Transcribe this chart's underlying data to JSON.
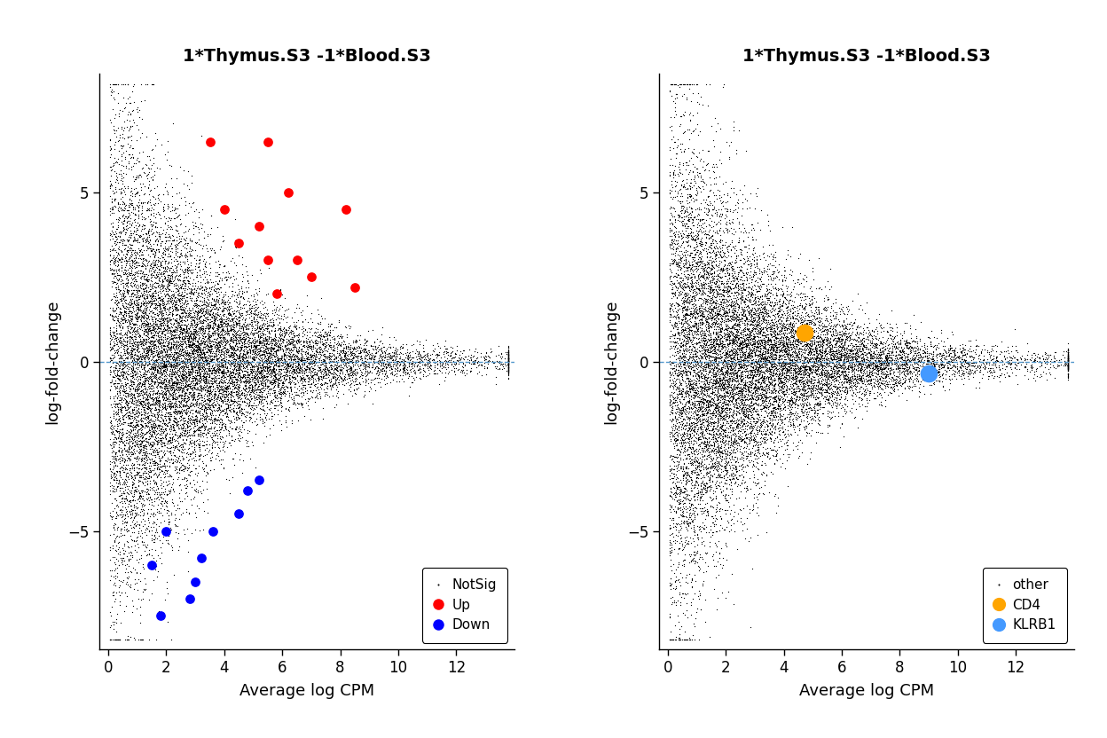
{
  "title": "1*Thymus.S3 -1*Blood.S3",
  "xlabel": "Average log CPM",
  "ylabel": "log-fold-change",
  "xlim": [
    -0.3,
    14.0
  ],
  "ylim": [
    -8.5,
    8.5
  ],
  "xticks": [
    0,
    2,
    4,
    6,
    8,
    10,
    12
  ],
  "yticks": [
    -5,
    0,
    5
  ],
  "background_color": "#ffffff",
  "seed": 42,
  "n_background": 15000,
  "plot1": {
    "title": "1*Thymus.S3 -1*Blood.S3",
    "up_points": [
      [
        3.5,
        6.5
      ],
      [
        5.5,
        6.5
      ],
      [
        4.0,
        4.5
      ],
      [
        5.2,
        4.0
      ],
      [
        6.2,
        5.0
      ],
      [
        4.5,
        3.5
      ],
      [
        5.5,
        3.0
      ],
      [
        6.5,
        3.0
      ],
      [
        7.0,
        2.5
      ],
      [
        8.2,
        4.5
      ],
      [
        8.5,
        2.2
      ],
      [
        5.8,
        2.0
      ]
    ],
    "down_points": [
      [
        1.8,
        -7.5
      ],
      [
        3.0,
        -6.5
      ],
      [
        2.8,
        -7.0
      ],
      [
        1.5,
        -6.0
      ],
      [
        3.2,
        -5.8
      ],
      [
        2.0,
        -5.0
      ],
      [
        3.6,
        -5.0
      ],
      [
        4.5,
        -4.5
      ],
      [
        4.8,
        -3.8
      ],
      [
        5.2,
        -3.5
      ]
    ],
    "legend_items": [
      "NotSig",
      "Up",
      "Down"
    ],
    "legend_colors": [
      "#000000",
      "#ff0000",
      "#0000ff"
    ]
  },
  "plot2": {
    "title": "1*Thymus.S3 -1*Blood.S3",
    "cd4_point": [
      4.7,
      0.85
    ],
    "klrb1_point": [
      9.0,
      -0.35
    ],
    "cd4_color": "#FFA500",
    "klrb1_color": "#4499FF",
    "legend_items": [
      "other",
      "CD4",
      "KLRB1"
    ],
    "legend_colors": [
      "#000000",
      "#FFA500",
      "#4499FF"
    ]
  }
}
